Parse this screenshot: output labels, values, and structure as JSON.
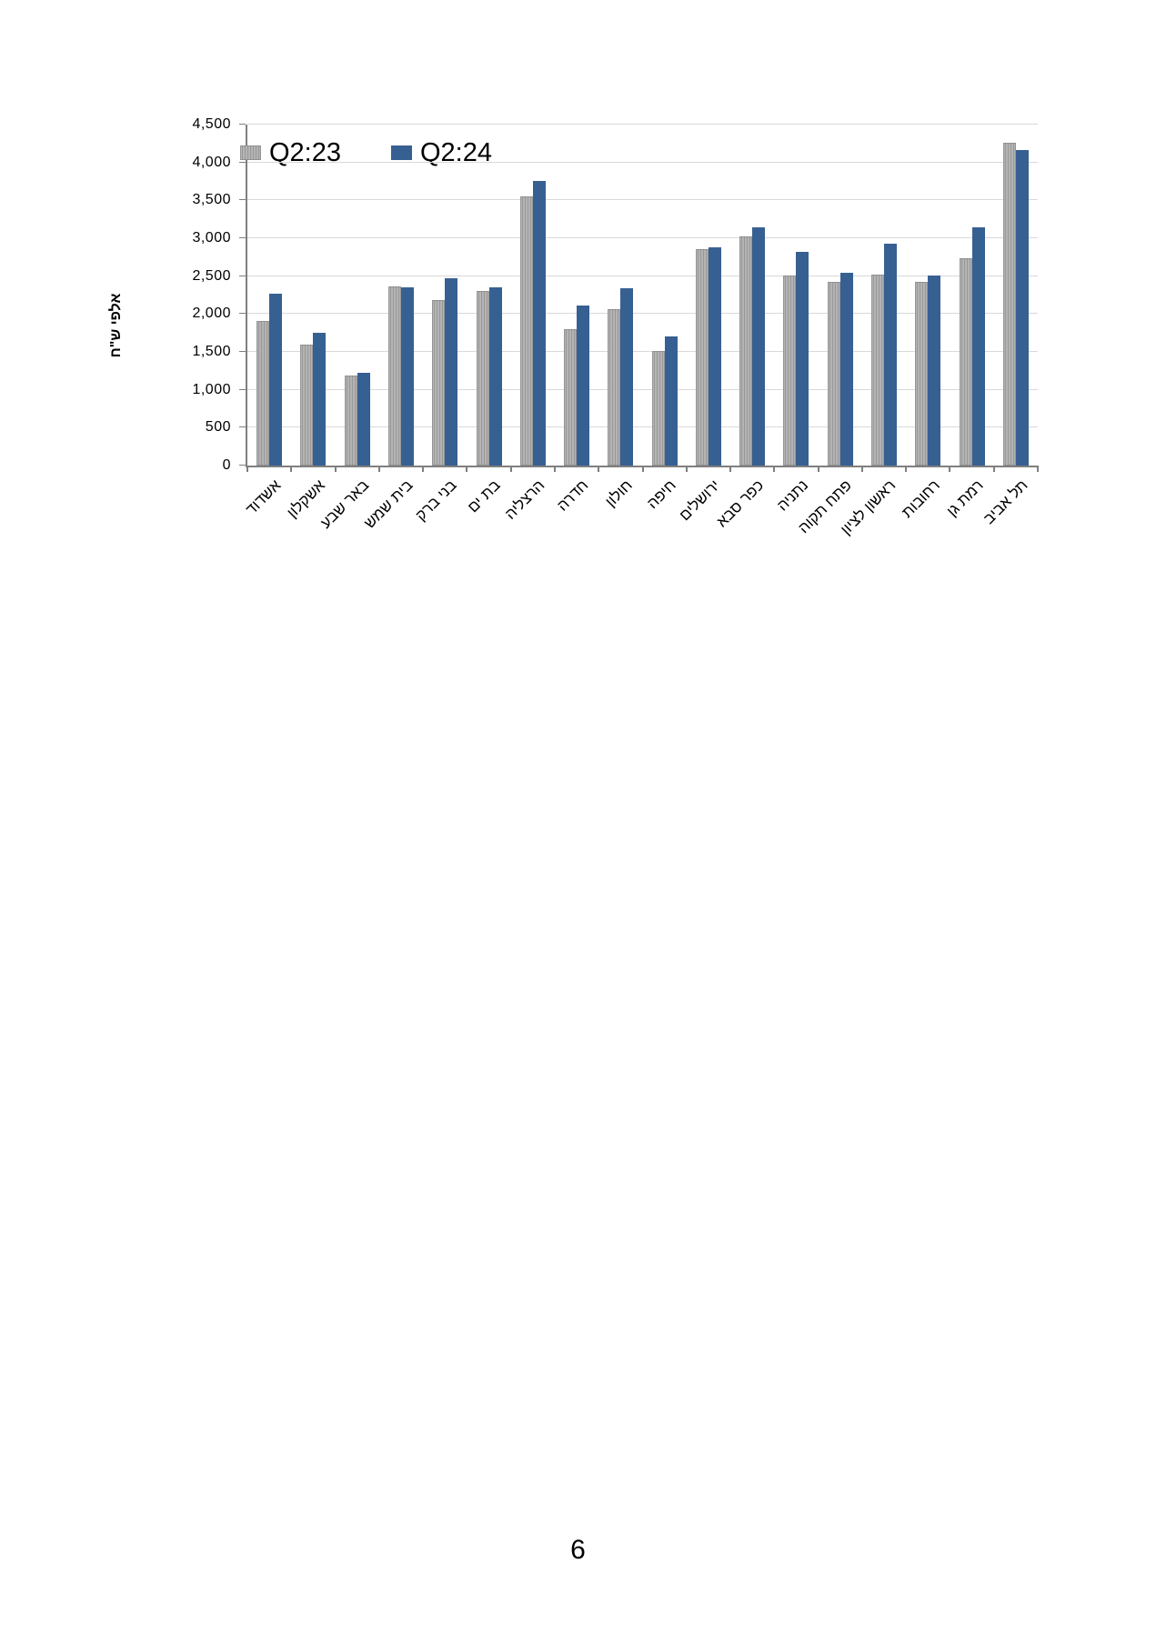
{
  "page": {
    "number": "6",
    "background": "#ffffff"
  },
  "chart_data": {
    "type": "bar",
    "title": "",
    "ylabel": "אלפי ש\"ח",
    "xlabel": "",
    "ylim": [
      0,
      4500
    ],
    "ytick_step": 500,
    "ytick_labels": [
      "0",
      "500",
      "1,000",
      "1,500",
      "2,000",
      "2,500",
      "3,000",
      "3,500",
      "4,000",
      "4,500"
    ],
    "grid": true,
    "legend_position": "top-left",
    "categories": [
      "אשדוד",
      "אשקלון",
      "באר שבע",
      "בית שמש",
      "בני ברק",
      "בת ים",
      "הרצליה",
      "חדרה",
      "חולון",
      "חיפה",
      "ירושלים",
      "כפר סבא",
      "נתניה",
      "פתח תקוה",
      "ראשון לציון",
      "רחובות",
      "רמת גן",
      "תל אביב"
    ],
    "series": [
      {
        "name": "Q2:23",
        "color": "#a6a6a6",
        "fill_style": "striped",
        "values": [
          1910,
          1600,
          1190,
          2360,
          2190,
          2300,
          3550,
          1800,
          2070,
          1510,
          2860,
          3020,
          2510,
          2420,
          2520,
          2420,
          2740,
          4260
        ]
      },
      {
        "name": "Q2:24",
        "color": "#376092",
        "fill_style": "solid",
        "values": [
          2270,
          1750,
          1230,
          2350,
          2470,
          2350,
          3760,
          2110,
          2340,
          1710,
          2880,
          3150,
          2820,
          2540,
          2930,
          2510,
          3150,
          4170
        ]
      }
    ]
  },
  "colors": {
    "gridline": "#d9d9d9",
    "axis": "#7f7f7f",
    "bar_gray": "#a6a6a6",
    "bar_blue": "#376092",
    "text": "#000000"
  }
}
